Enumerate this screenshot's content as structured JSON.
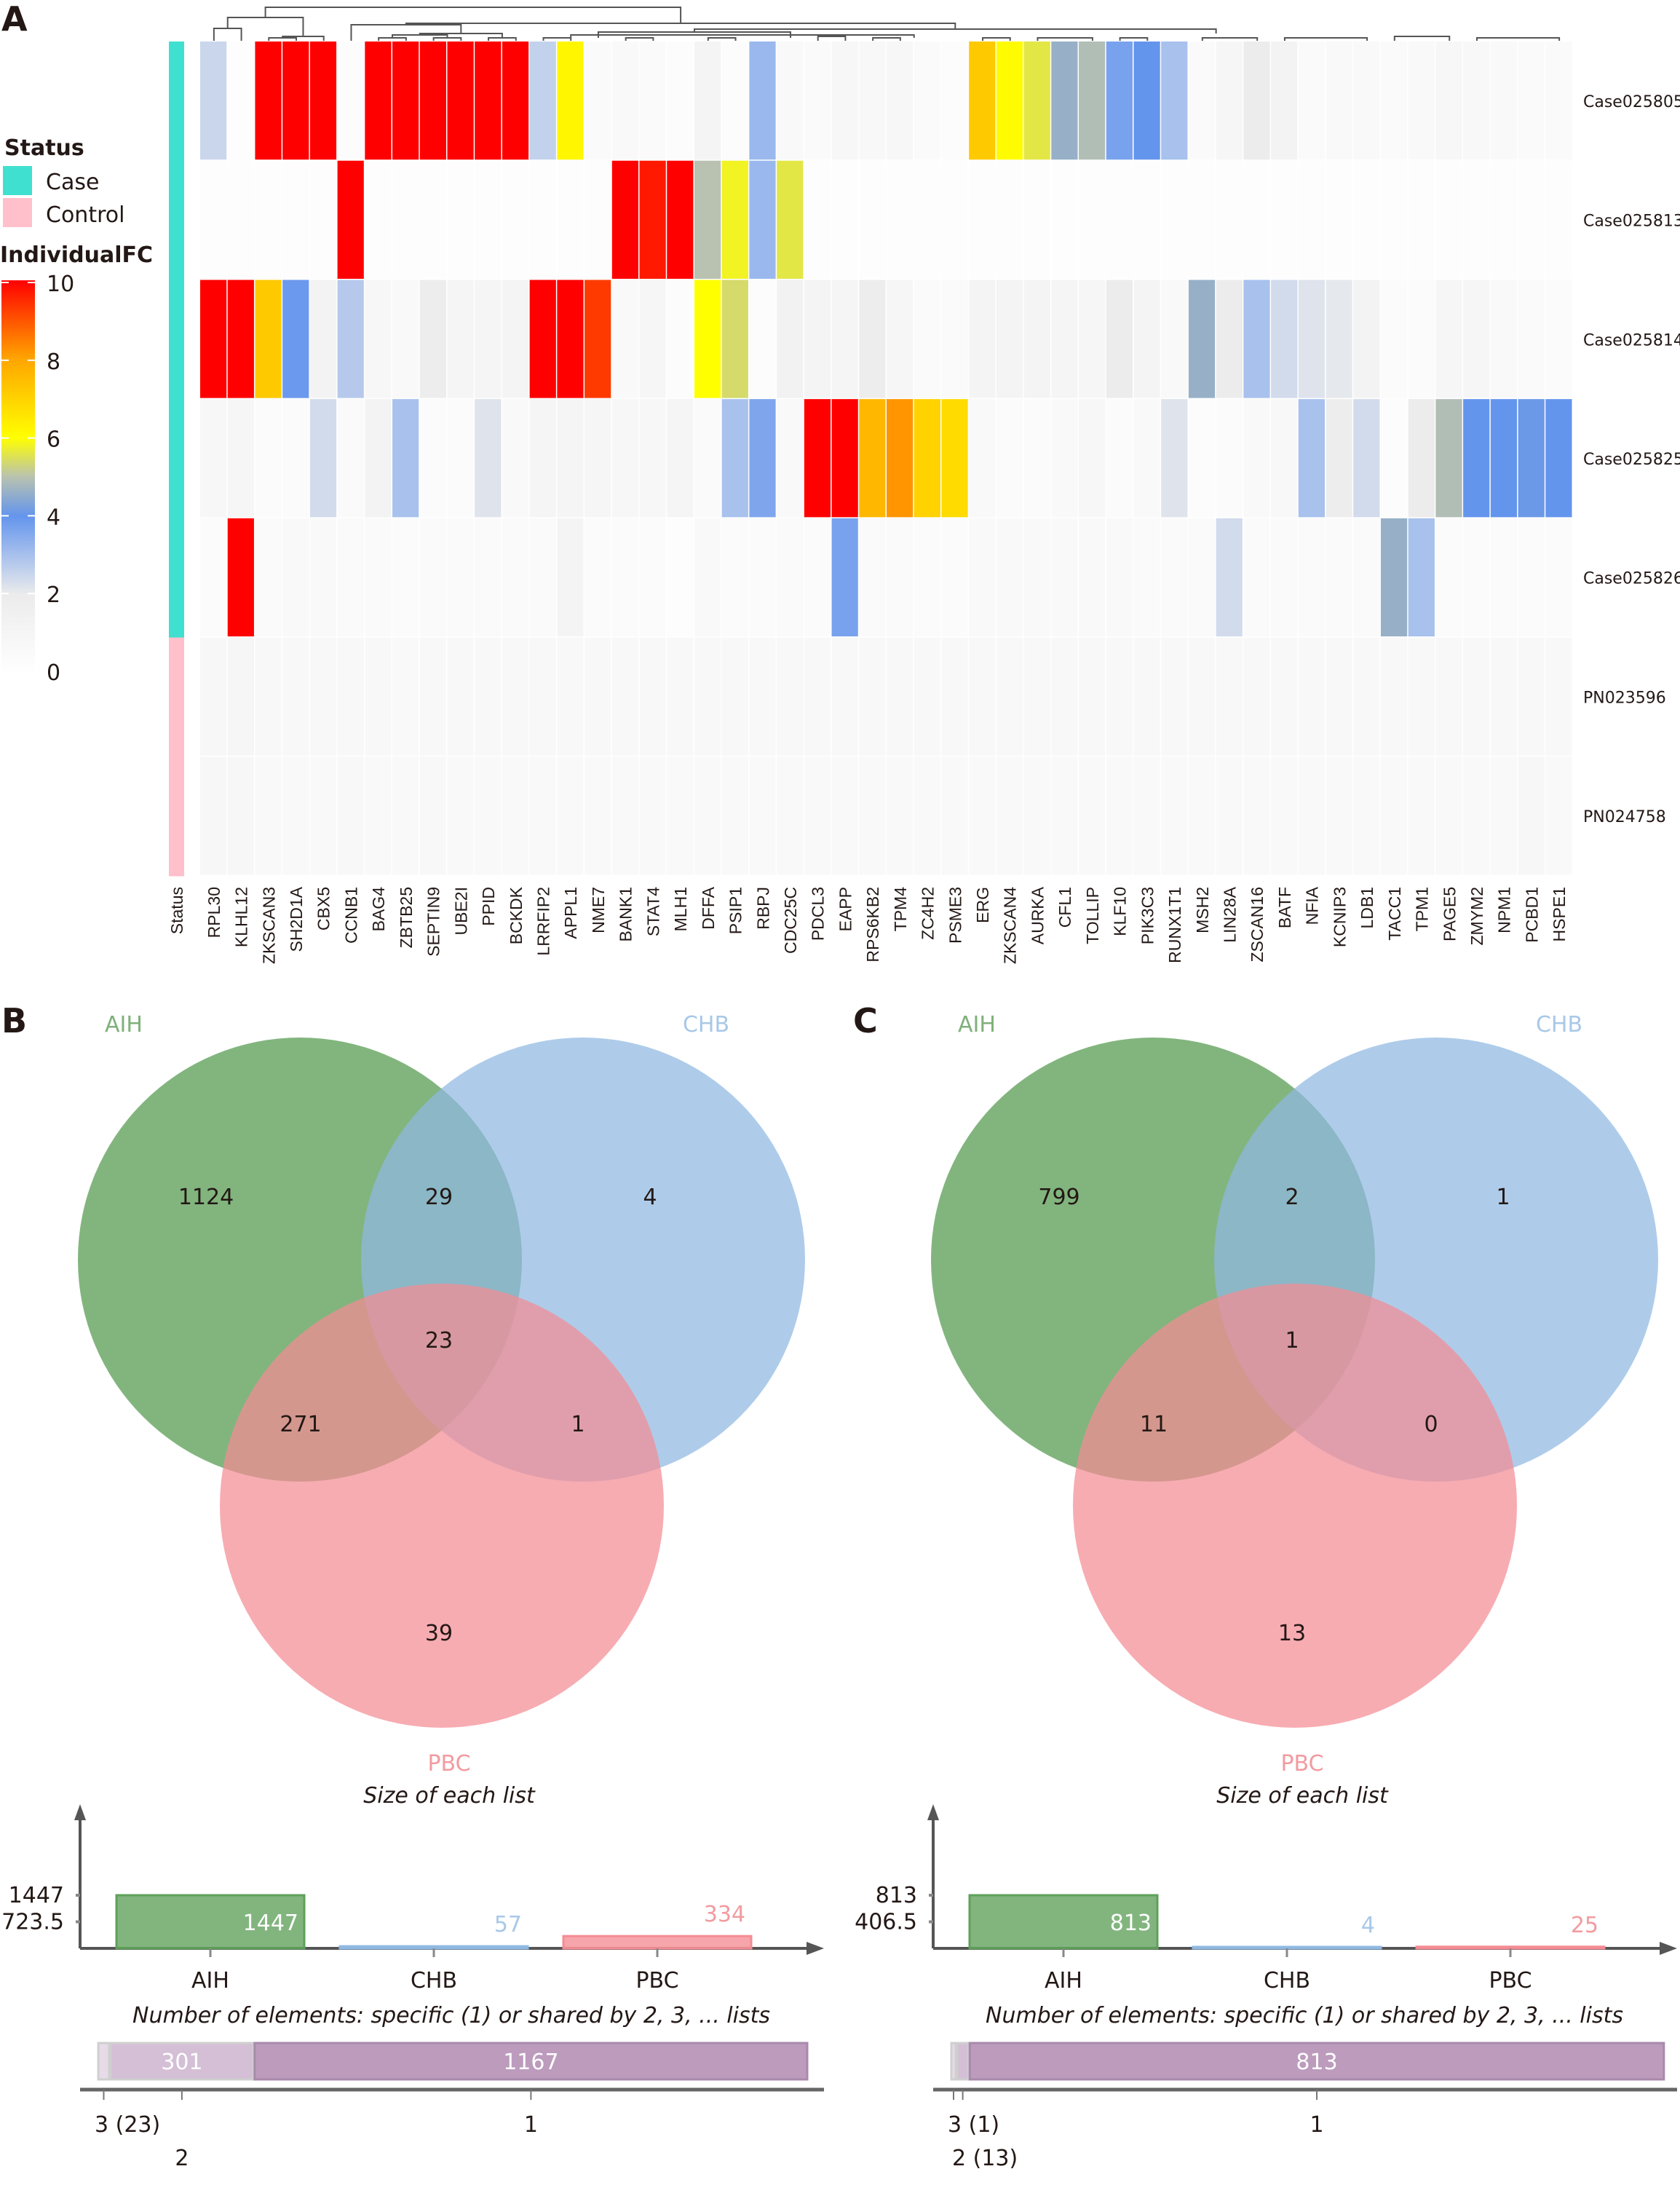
{
  "figure": {
    "panels": [
      "A",
      "B",
      "C"
    ]
  },
  "chart_data": [
    {
      "panel": "A",
      "type": "heatmap",
      "title": "",
      "legend": {
        "status_title": "Status",
        "status_items": [
          {
            "label": "Case",
            "color": "#40E0D0"
          },
          {
            "label": "Control",
            "color": "#FFC0CB"
          }
        ],
        "scale_title": "IndividualFC",
        "scale_ticks": [
          "10",
          "8",
          "6",
          "4",
          "2",
          "0"
        ],
        "scale_range": [
          0,
          10
        ],
        "scale_stops": [
          {
            "value": 0,
            "color": "#ffffff"
          },
          {
            "value": 2,
            "color": "#ececec"
          },
          {
            "value": 4,
            "color": "#6495ed"
          },
          {
            "value": 5,
            "color": "#b9c2b0"
          },
          {
            "value": 6,
            "color": "#ffff00"
          },
          {
            "value": 8,
            "color": "#ffa500"
          },
          {
            "value": 10,
            "color": "#ff0000"
          }
        ]
      },
      "status_column_label": "Status",
      "columns": [
        "RPL30",
        "KLHL12",
        "ZKSCAN3",
        "SH2D1A",
        "CBX5",
        "CCNB1",
        "BAG4",
        "ZBTB25",
        "SEPTIN9",
        "UBE2I",
        "PPID",
        "BCKDK",
        "LRRFIP2",
        "APPL1",
        "NME7",
        "BANK1",
        "STAT4",
        "MLH1",
        "DFFA",
        "PSIP1",
        "RBPJ",
        "CDC25C",
        "PDCL3",
        "EAPP",
        "RPS6KB2",
        "TPM4",
        "ZC4H2",
        "PSME3",
        "ERG",
        "ZKSCAN4",
        "AURKA",
        "CFL1",
        "TOLLIP",
        "KLF10",
        "PIK3C3",
        "RUNX1T1",
        "MSH2",
        "LIN28A",
        "ZSCAN16",
        "BATF",
        "NFIA",
        "KCNIP3",
        "LDB1",
        "TACC1",
        "TPM1",
        "PAGE5",
        "ZMYM2",
        "NPM1",
        "PCBD1",
        "HSPE1"
      ],
      "rows": [
        {
          "label": "Case025805",
          "status": "Case",
          "values": [
            2.5,
            0.2,
            10,
            10,
            10,
            0.3,
            10,
            10,
            10,
            10,
            10,
            10,
            2.6,
            6.2,
            0.5,
            0.6,
            0.5,
            0.3,
            1.2,
            0.3,
            3.2,
            0.6,
            0.5,
            0.8,
            0.7,
            0.8,
            0.5,
            0.3,
            7.2,
            6.1,
            5.6,
            4.6,
            4.9,
            3.7,
            4.0,
            3.0,
            0.5,
            1.0,
            2.0,
            1.3,
            0.5,
            0.6,
            0.6,
            0.5,
            0.6,
            0.8,
            0.7,
            0.6,
            0.5,
            0.5
          ]
        },
        {
          "label": "Case025813",
          "status": "Case",
          "values": [
            0.2,
            0.2,
            0.2,
            0.2,
            0.2,
            10,
            0.2,
            0.2,
            0.2,
            0.2,
            0.2,
            0.2,
            0.2,
            0.2,
            0.2,
            10,
            9.7,
            10,
            5.0,
            5.8,
            3.2,
            5.6,
            0.2,
            0.2,
            0.2,
            0.2,
            0.2,
            0.2,
            0.2,
            0.2,
            0.2,
            0.2,
            0.2,
            0.2,
            0.2,
            0.2,
            0.2,
            0.2,
            0.2,
            0.2,
            0.2,
            0.2,
            0.2,
            0.2,
            0.2,
            0.2,
            0.2,
            0.2,
            0.2,
            0.2
          ]
        },
        {
          "label": "Case025814",
          "status": "Case",
          "values": [
            10,
            10,
            7.2,
            3.9,
            1.3,
            2.8,
            0.8,
            0.6,
            1.9,
            1.1,
            1.1,
            1.2,
            10,
            10,
            9.3,
            0.6,
            1.0,
            0.3,
            6.0,
            5.4,
            0.3,
            1.4,
            1.2,
            1.1,
            1.9,
            1.0,
            0.5,
            0.5,
            1.2,
            1.2,
            1.2,
            1.1,
            0.9,
            2.0,
            1.2,
            0.6,
            4.6,
            2.0,
            3.0,
            2.4,
            2.2,
            2.1,
            1.3,
            0.4,
            0.4,
            0.9,
            0.9,
            0.6,
            0.5,
            0.4
          ]
        },
        {
          "label": "Case025825",
          "status": "Case",
          "values": [
            0.8,
            0.9,
            0.4,
            0.4,
            2.4,
            0.5,
            1.3,
            3.0,
            0.4,
            0.4,
            2.2,
            0.6,
            1.1,
            1.1,
            1.0,
            0.8,
            0.8,
            1.1,
            0.5,
            3.0,
            3.6,
            0.6,
            10,
            10,
            7.6,
            8.2,
            7.0,
            6.8,
            0.6,
            0.4,
            0.4,
            0.6,
            0.8,
            0.4,
            0.6,
            2.2,
            0.3,
            0.4,
            0.6,
            0.7,
            3.0,
            1.9,
            2.4,
            0.3,
            2.0,
            4.9,
            4.0,
            4.0,
            4.1,
            4.0
          ]
        },
        {
          "label": "Case025826",
          "status": "Case",
          "values": [
            0.4,
            10,
            0.5,
            0.6,
            0.6,
            0.5,
            0.5,
            0.4,
            0.5,
            0.5,
            0.5,
            0.5,
            0.5,
            1.2,
            0.4,
            0.4,
            0.4,
            0.2,
            0.6,
            0.4,
            0.4,
            0.5,
            0.4,
            3.7,
            0.5,
            0.5,
            0.4,
            0.4,
            0.6,
            0.6,
            0.6,
            0.6,
            0.6,
            0.6,
            0.5,
            0.5,
            0.5,
            2.4,
            0.5,
            0.5,
            0.5,
            0.5,
            0.5,
            4.6,
            3.0,
            0.4,
            0.4,
            0.4,
            0.4,
            0.4
          ]
        },
        {
          "label": "PN023596",
          "status": "Control",
          "values": [
            0.8,
            0.9,
            0.7,
            0.7,
            0.7,
            0.7,
            0.7,
            0.6,
            0.7,
            0.7,
            0.7,
            0.7,
            0.7,
            0.7,
            0.7,
            0.7,
            0.7,
            0.7,
            0.7,
            0.7,
            0.7,
            0.7,
            0.7,
            0.7,
            0.7,
            0.7,
            0.7,
            0.7,
            0.7,
            0.7,
            0.7,
            0.7,
            0.7,
            0.7,
            0.7,
            0.7,
            0.7,
            0.7,
            0.7,
            0.7,
            0.7,
            0.7,
            0.7,
            0.7,
            0.7,
            0.7,
            0.7,
            0.7,
            0.7,
            0.7
          ]
        },
        {
          "label": "PN024758",
          "status": "Control",
          "values": [
            0.8,
            0.8,
            0.6,
            0.6,
            0.6,
            0.7,
            0.6,
            0.6,
            0.7,
            0.6,
            0.6,
            0.6,
            0.6,
            0.6,
            0.6,
            0.6,
            0.6,
            0.6,
            0.6,
            0.6,
            0.6,
            0.6,
            0.6,
            0.6,
            0.6,
            0.6,
            0.6,
            0.6,
            0.6,
            0.6,
            0.6,
            0.6,
            0.6,
            0.6,
            0.6,
            0.6,
            0.6,
            0.6,
            0.6,
            0.6,
            0.6,
            0.6,
            0.6,
            0.6,
            0.6,
            0.6,
            0.6,
            0.6,
            0.8,
            0.6
          ]
        }
      ]
    },
    {
      "panel": "B",
      "type": "venn",
      "sets": [
        {
          "name": "AIH",
          "color": "#5fa05a",
          "label_color": "#7fb07a"
        },
        {
          "name": "CHB",
          "color": "#8fb9e2",
          "label_color": "#a8c8e8"
        },
        {
          "name": "PBC",
          "color": "#f48c94",
          "label_color": "#f29ba0"
        }
      ],
      "regions": {
        "AIH_only": "1124",
        "CHB_only": "4",
        "PBC_only": "39",
        "AIH_CHB": "29",
        "AIH_PBC": "271",
        "CHB_PBC": "1",
        "AIH_CHB_PBC": "23"
      },
      "subtitle": "Size of each list",
      "list_sizes": {
        "categories": [
          "AIH",
          "CHB",
          "PBC"
        ],
        "values": [
          1447,
          57,
          334
        ],
        "yticks": [
          "1447",
          "723.5"
        ],
        "ylim": [
          0,
          1447
        ]
      },
      "shared_title": "Number of elements: specific (1) or shared by 2, 3, ... lists",
      "shared": {
        "segments": [
          {
            "degree": "3",
            "value": 23,
            "label": ""
          },
          {
            "degree": "2",
            "value": 301,
            "label": "301"
          },
          {
            "degree": "1",
            "value": 1167,
            "label": "1167"
          }
        ],
        "tick_labels": [
          "3 (23)",
          "2",
          "1"
        ]
      }
    },
    {
      "panel": "C",
      "type": "venn",
      "sets": [
        {
          "name": "AIH",
          "color": "#5fa05a",
          "label_color": "#7fb07a"
        },
        {
          "name": "CHB",
          "color": "#8fb9e2",
          "label_color": "#a8c8e8"
        },
        {
          "name": "PBC",
          "color": "#f48c94",
          "label_color": "#f29ba0"
        }
      ],
      "regions": {
        "AIH_only": "799",
        "CHB_only": "1",
        "PBC_only": "13",
        "AIH_CHB": "2",
        "AIH_PBC": "11",
        "CHB_PBC": "0",
        "AIH_CHB_PBC": "1"
      },
      "subtitle": "Size of each list",
      "list_sizes": {
        "categories": [
          "AIH",
          "CHB",
          "PBC"
        ],
        "values": [
          813,
          4,
          25
        ],
        "yticks": [
          "813",
          "406.5"
        ],
        "ylim": [
          0,
          813
        ]
      },
      "shared_title": "Number of elements: specific (1) or shared by 2, 3, ... lists",
      "shared": {
        "segments": [
          {
            "degree": "3",
            "value": 1,
            "label": ""
          },
          {
            "degree": "2",
            "value": 13,
            "label": ""
          },
          {
            "degree": "1",
            "value": 813,
            "label": "813"
          }
        ],
        "tick_labels": [
          "3 (1)",
          "2 (13)",
          "1"
        ]
      }
    }
  ]
}
